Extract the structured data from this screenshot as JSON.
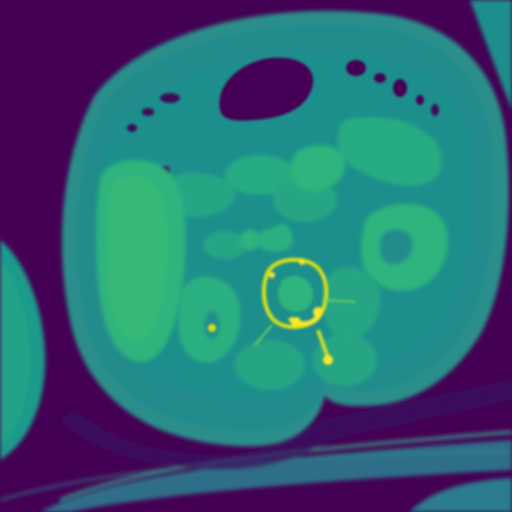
{
  "image": {
    "kind": "axial CT slice, viridis colormap",
    "colors": {
      "background": "#440154",
      "background_deep": "#3d0b59",
      "skin_rim": "#2a8f8a",
      "body_outer": "#238c8d",
      "body_inner": "#1f8f8c",
      "fat": "#1f7f8a",
      "soft_tissue": "#25a584",
      "organ_bright": "#2fb47c",
      "organ_highlight": "#3dbc74",
      "air": "#440154",
      "bone": "#d7e219",
      "bone_bright": "#fde725",
      "arm": "#1f9a8a",
      "table": "#2b7a8e"
    }
  }
}
